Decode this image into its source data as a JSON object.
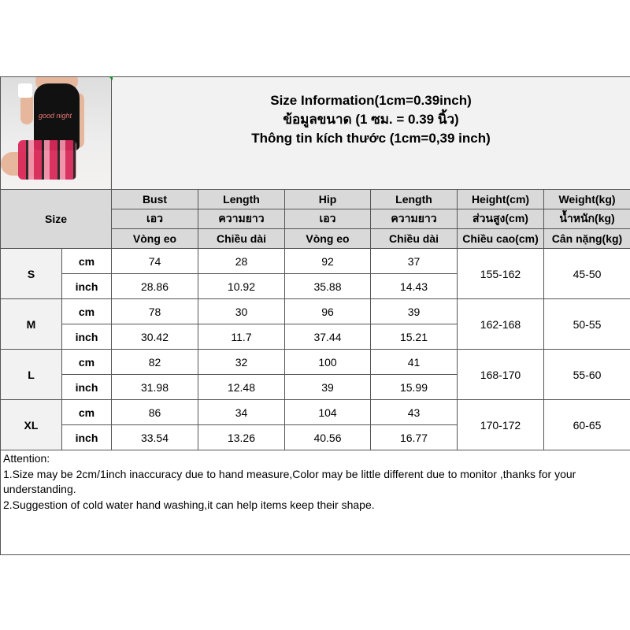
{
  "title_lines": [
    "Size Information(1cm=0.39inch)",
    "ข้อมูลขนาด (1 ซม. = 0.39 นิ้ว)",
    "Thông tin kích thước (1cm=0,39 inch)"
  ],
  "size_label": "Size",
  "headers": {
    "en": [
      "Bust",
      "Length",
      "Hip",
      "Length",
      "Height(cm)",
      "Weight(kg)"
    ],
    "th": [
      "เอว",
      "ความยาว",
      "เอว",
      "ความยาว",
      "ส่วนสูง(cm)",
      "น้ำหนัก(kg)"
    ],
    "vi": [
      "Vòng eo",
      "Chiều dài",
      "Vòng eo",
      "Chiều dài",
      "Chiều cao(cm)",
      "Cân nặng(kg)"
    ]
  },
  "units": [
    "cm",
    "inch"
  ],
  "rows": [
    {
      "size": "S",
      "cm": [
        "74",
        "28",
        "92",
        "37"
      ],
      "inch": [
        "28.86",
        "10.92",
        "35.88",
        "14.43"
      ],
      "height": "155-162",
      "weight": "45-50"
    },
    {
      "size": "M",
      "cm": [
        "78",
        "30",
        "96",
        "39"
      ],
      "inch": [
        "30.42",
        "11.7",
        "37.44",
        "15.21"
      ],
      "height": "162-168",
      "weight": "50-55"
    },
    {
      "size": "L",
      "cm": [
        "82",
        "32",
        "100",
        "41"
      ],
      "inch": [
        "31.98",
        "12.48",
        "39",
        "15.99"
      ],
      "height": "168-170",
      "weight": "55-60"
    },
    {
      "size": "XL",
      "cm": [
        "86",
        "34",
        "104",
        "43"
      ],
      "inch": [
        "33.54",
        "13.26",
        "40.56",
        "16.77"
      ],
      "height": "170-172",
      "weight": "60-65"
    }
  ],
  "attention": [
    "Attention:",
    "1.Size may be 2cm/1inch inaccuracy due to hand measure,Color may be little different due to monitor ,thanks for your understanding.",
    "2.Suggestion of cold water hand washing,it can help items keep their shape."
  ],
  "photo": {
    "shirt_text": "good night"
  }
}
